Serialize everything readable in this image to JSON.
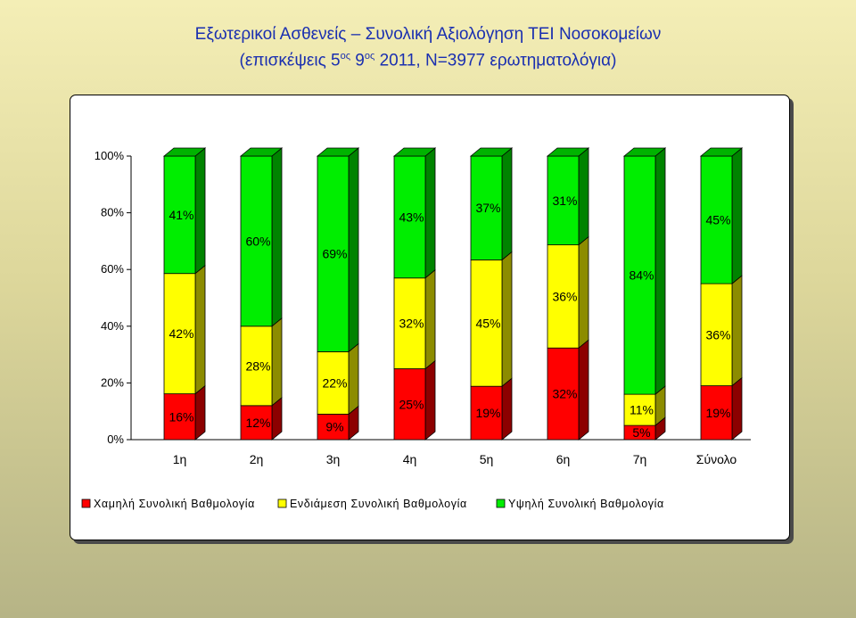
{
  "title": {
    "line1": "Εξωτερικοί Ασθενείς – Συνολική Αξιολόγηση ΤΕΙ Νοσοκομείων",
    "line2_a": "(επισκέψεις 5",
    "line2_sup_a": "ος",
    "line2_b": " 9",
    "line2_sup_b": "ος",
    "line2_c": " 2011, Ν=3977 ερωτηματολόγια)"
  },
  "chart_data": {
    "type": "bar",
    "stacked": true,
    "percent_stacked": true,
    "three_d": true,
    "categories": [
      "1η",
      "2η",
      "3η",
      "4η",
      "5η",
      "6η",
      "7η",
      "Σύνολο"
    ],
    "series": [
      {
        "name": "Χαμηλή Συνολική Βαθμολογία",
        "color": "#ff0000",
        "values": [
          16,
          12,
          9,
          25,
          19,
          32,
          5,
          19
        ],
        "labels": [
          "16%",
          "12%",
          "9%",
          "25%",
          "19%",
          "32%",
          "5%",
          "19%"
        ]
      },
      {
        "name": "Ενδιάμεση Συνολική Βαθμολογία",
        "color": "#ffff00",
        "values": [
          42,
          28,
          22,
          32,
          45,
          36,
          11,
          36
        ],
        "labels": [
          "42%",
          "28%",
          "22%",
          "32%",
          "45%",
          "36%",
          "11%",
          "36%"
        ]
      },
      {
        "name": "Υψηλή Συνολική Βαθμολογία",
        "color": "#00ee00",
        "values": [
          41,
          60,
          69,
          43,
          37,
          31,
          84,
          45
        ],
        "labels": [
          "41%",
          "60%",
          "69%",
          "43%",
          "37%",
          "31%",
          "84%",
          "45%"
        ]
      }
    ],
    "y_ticks": [
      "0%",
      "20%",
      "40%",
      "60%",
      "80%",
      "100%"
    ],
    "ylim": [
      0,
      100
    ],
    "legend_position": "bottom",
    "grid": false
  }
}
